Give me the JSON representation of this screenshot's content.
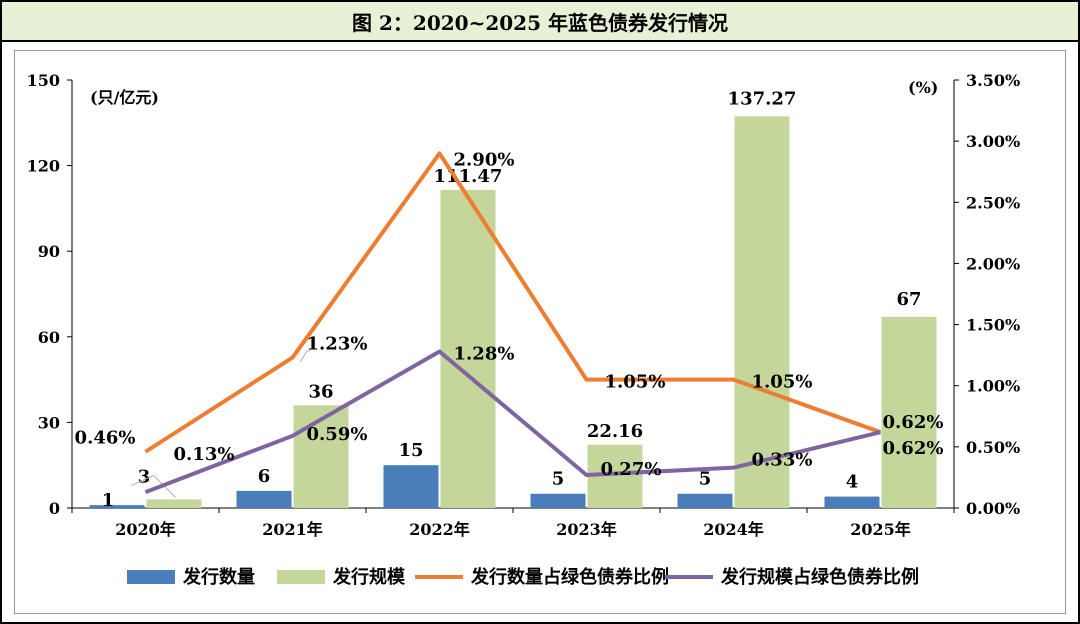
{
  "chart_data": {
    "type": "bar",
    "title": "图 2：2020~2025 年蓝色债券发行情况",
    "categories": [
      "2020年",
      "2021年",
      "2022年",
      "2023年",
      "2024年",
      "2025年"
    ],
    "y_left": {
      "label": "(只/亿元)",
      "ylim": [
        0,
        150
      ],
      "ticks": [
        "0",
        "30",
        "60",
        "90",
        "120",
        "150"
      ]
    },
    "y_right": {
      "label": "(%)",
      "ylim": [
        0,
        3.5
      ],
      "ticks": [
        "0.00%",
        "0.50%",
        "1.00%",
        "1.50%",
        "2.00%",
        "2.50%",
        "3.00%",
        "3.50%"
      ]
    },
    "series": [
      {
        "name": "发行数量",
        "kind": "bar",
        "axis": "left",
        "color": "#4a7ebb",
        "values": [
          1,
          6,
          15,
          5,
          5,
          4
        ],
        "labels": [
          "1",
          "6",
          "15",
          "5",
          "5",
          "4"
        ]
      },
      {
        "name": "发行规模",
        "kind": "bar",
        "axis": "left",
        "color": "#c4d79b",
        "values": [
          3,
          36,
          111.47,
          22.16,
          137.27,
          67
        ],
        "labels": [
          "3",
          "36",
          "111.47",
          "22.16",
          "137.27",
          "67"
        ]
      },
      {
        "name": "发行数量占绿色债券比例",
        "kind": "line",
        "axis": "right",
        "color": "#ed7d31",
        "values": [
          0.46,
          1.23,
          2.9,
          1.05,
          1.05,
          0.62
        ],
        "labels": [
          "0.46%",
          "1.23%",
          "2.90%",
          "1.05%",
          "1.05%",
          "0.62%"
        ]
      },
      {
        "name": "发行规模占绿色债券比例",
        "kind": "line",
        "axis": "right",
        "color": "#8064a2",
        "values": [
          0.13,
          0.59,
          1.28,
          0.27,
          0.33,
          0.62
        ],
        "labels": [
          "0.13%",
          "0.59%",
          "1.28%",
          "0.27%",
          "0.33%",
          "0.62%"
        ]
      }
    ],
    "legend": [
      "发行数量",
      "发行规模",
      "发行数量占绿色债券比例",
      "发行规模占绿色债券比例"
    ]
  }
}
